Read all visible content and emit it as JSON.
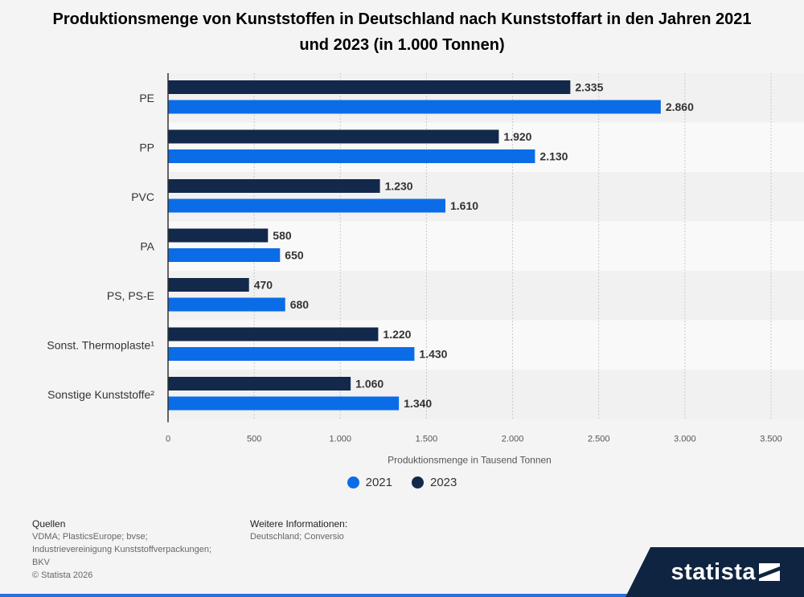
{
  "chart_data": {
    "type": "bar",
    "orientation": "horizontal",
    "title": "Produktionsmenge von Kunststoffen in Deutschland nach Kunststoffart in den Jahren 2021 und 2023 (in 1.000 Tonnen)",
    "xlabel": "Produktionsmenge in Tausend Tonnen",
    "categories": [
      "PE",
      "PP",
      "PVC",
      "PA",
      "PS, PS-E",
      "Sonst. Thermoplaste¹",
      "Sonstige Kunststoffe²"
    ],
    "series": [
      {
        "name": "2023",
        "color": "#13294b",
        "values": [
          2335,
          1920,
          1230,
          580,
          470,
          1220,
          1060
        ],
        "labels": [
          "2.335",
          "1.920",
          "1.230",
          "580",
          "470",
          "1.220",
          "1.060"
        ]
      },
      {
        "name": "2021",
        "color": "#0b6ce8",
        "values": [
          2860,
          2130,
          1610,
          650,
          680,
          1430,
          1340
        ],
        "labels": [
          "2.860",
          "2.130",
          "1.610",
          "650",
          "680",
          "1.430",
          "1.340"
        ]
      }
    ],
    "xlim": [
      0,
      3500
    ],
    "ticks": [
      0,
      500,
      1000,
      1500,
      2000,
      2500,
      3000,
      3500
    ],
    "tick_labels": [
      "0",
      "500",
      "1.000",
      "1.500",
      "2.000",
      "2.500",
      "3.000",
      "3.500"
    ],
    "grid": true,
    "legend": {
      "placement": "bottom",
      "items": [
        {
          "label": "2021",
          "color": "#0b6ce8"
        },
        {
          "label": "2023",
          "color": "#13294b"
        }
      ]
    }
  },
  "footer": {
    "sources_head": "Quellen",
    "sources_lines": [
      "VDMA; PlasticsEurope; bvse;",
      "Industrievereinigung Kunststoffverpackungen;",
      "BKV",
      "© Statista 2026"
    ],
    "more_head": "Weitere Informationen:",
    "more_text": "Deutschland; Conversio"
  },
  "logo": {
    "text": "statista"
  }
}
